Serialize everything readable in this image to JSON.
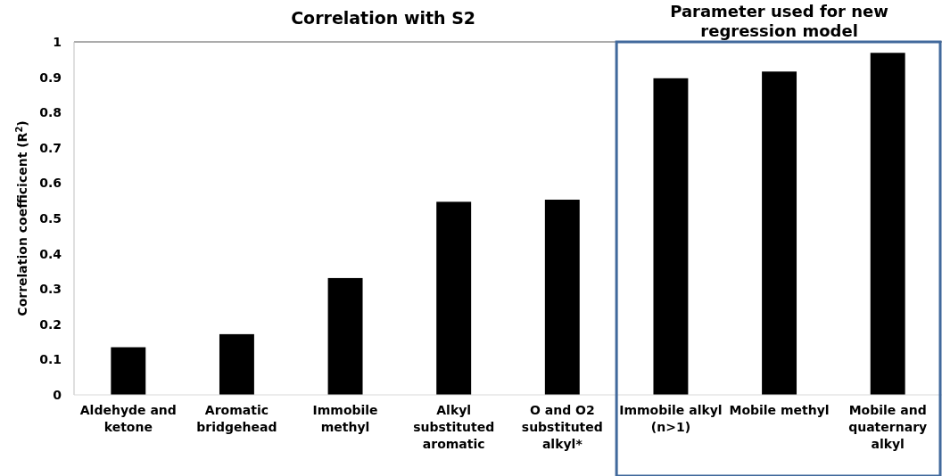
{
  "chart_data": {
    "type": "bar",
    "title": "Correlation with S2",
    "ylabel": "Correlation coefficicent (R$^{2}$)",
    "categories": [
      "Aldehyde and ketone",
      "Aromatic bridgehead",
      "Immobile methyl",
      "Alkyl substituted aromatic",
      "O and O2 substituted alkyl*",
      "Immobile alkyl (n>1)",
      "Mobile methyl",
      "Mobile and quaternary alkyl"
    ],
    "values": [
      0.135,
      0.172,
      0.331,
      0.547,
      0.553,
      0.897,
      0.916,
      0.969
    ],
    "color": "#000000",
    "ylim": [
      0,
      1
    ],
    "yticks": [
      0,
      0.1,
      0.2,
      0.3,
      0.4,
      0.5,
      0.6,
      0.7,
      0.8,
      0.9,
      1
    ],
    "annotations": [
      "Parameter used for new regression model"
    ],
    "grid": false
  }
}
